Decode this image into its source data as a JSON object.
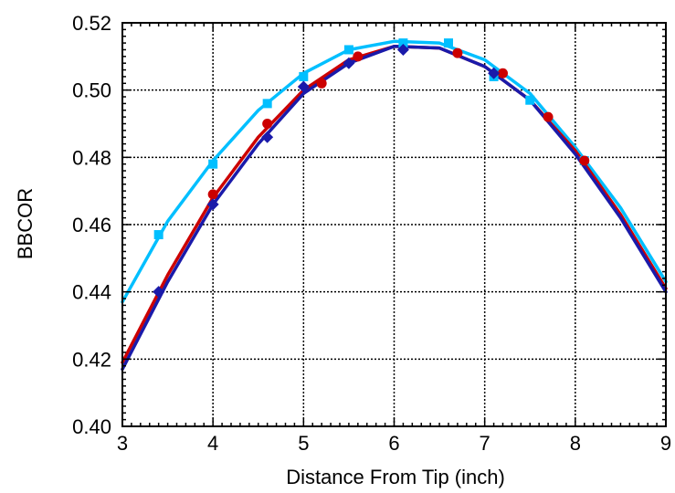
{
  "chart_data": {
    "type": "scatter",
    "title": "",
    "xlabel": "Distance From Tip (inch)",
    "ylabel": "BBCOR",
    "xlim": [
      3,
      9
    ],
    "ylim": [
      0.4,
      0.52
    ],
    "xticks": [
      3,
      4,
      5,
      6,
      7,
      8,
      9
    ],
    "yticks": [
      0.4,
      0.42,
      0.44,
      0.46,
      0.48,
      0.5,
      0.52
    ],
    "xtick_labels": [
      "3",
      "4",
      "5",
      "6",
      "7",
      "8",
      "9"
    ],
    "ytick_labels": [
      "0.40",
      "0.42",
      "0.44",
      "0.46",
      "0.48",
      "0.50",
      "0.52"
    ],
    "grid": true,
    "series": [
      {
        "color": "#00bfff",
        "marker": "square",
        "points": [
          {
            "x": 3.4,
            "y": 0.457
          },
          {
            "x": 4.0,
            "y": 0.478
          },
          {
            "x": 4.6,
            "y": 0.496
          },
          {
            "x": 5.0,
            "y": 0.504
          },
          {
            "x": 5.5,
            "y": 0.512
          },
          {
            "x": 6.1,
            "y": 0.514
          },
          {
            "x": 6.6,
            "y": 0.514
          },
          {
            "x": 7.1,
            "y": 0.504
          },
          {
            "x": 7.5,
            "y": 0.497
          },
          {
            "x": 8.1,
            "y": 0.479
          }
        ],
        "fit": [
          {
            "x": 3.0,
            "y": 0.437
          },
          {
            "x": 3.5,
            "y": 0.461
          },
          {
            "x": 4.0,
            "y": 0.479
          },
          {
            "x": 4.5,
            "y": 0.494
          },
          {
            "x": 5.0,
            "y": 0.505
          },
          {
            "x": 5.5,
            "y": 0.512
          },
          {
            "x": 6.0,
            "y": 0.5145
          },
          {
            "x": 6.5,
            "y": 0.514
          },
          {
            "x": 7.0,
            "y": 0.509
          },
          {
            "x": 7.5,
            "y": 0.499
          },
          {
            "x": 8.0,
            "y": 0.483
          },
          {
            "x": 8.5,
            "y": 0.465
          },
          {
            "x": 9.0,
            "y": 0.443
          }
        ]
      },
      {
        "color": "#cc0000",
        "marker": "circle",
        "points": [
          {
            "x": 4.0,
            "y": 0.469
          },
          {
            "x": 4.6,
            "y": 0.49
          },
          {
            "x": 5.2,
            "y": 0.502
          },
          {
            "x": 5.6,
            "y": 0.51
          },
          {
            "x": 6.7,
            "y": 0.511
          },
          {
            "x": 7.2,
            "y": 0.505
          },
          {
            "x": 7.7,
            "y": 0.492
          },
          {
            "x": 8.1,
            "y": 0.479
          }
        ],
        "fit": [
          {
            "x": 3.0,
            "y": 0.419
          },
          {
            "x": 3.5,
            "y": 0.445
          },
          {
            "x": 4.0,
            "y": 0.468
          },
          {
            "x": 4.5,
            "y": 0.486
          },
          {
            "x": 5.0,
            "y": 0.5
          },
          {
            "x": 5.5,
            "y": 0.509
          },
          {
            "x": 6.0,
            "y": 0.513
          },
          {
            "x": 6.5,
            "y": 0.5125
          },
          {
            "x": 7.0,
            "y": 0.507
          },
          {
            "x": 7.5,
            "y": 0.497
          },
          {
            "x": 8.0,
            "y": 0.482
          },
          {
            "x": 8.5,
            "y": 0.463
          },
          {
            "x": 9.0,
            "y": 0.441
          }
        ]
      },
      {
        "color": "#1a1aaa",
        "marker": "diamond",
        "points": [
          {
            "x": 3.4,
            "y": 0.44
          },
          {
            "x": 4.0,
            "y": 0.466
          },
          {
            "x": 4.6,
            "y": 0.486
          },
          {
            "x": 5.0,
            "y": 0.501
          },
          {
            "x": 5.5,
            "y": 0.508
          },
          {
            "x": 6.1,
            "y": 0.512
          },
          {
            "x": 7.1,
            "y": 0.505
          }
        ],
        "fit": [
          {
            "x": 3.0,
            "y": 0.417
          },
          {
            "x": 3.5,
            "y": 0.443
          },
          {
            "x": 4.0,
            "y": 0.466
          },
          {
            "x": 4.5,
            "y": 0.484
          },
          {
            "x": 5.0,
            "y": 0.499
          },
          {
            "x": 5.5,
            "y": 0.508
          },
          {
            "x": 6.0,
            "y": 0.513
          },
          {
            "x": 6.5,
            "y": 0.5125
          },
          {
            "x": 7.0,
            "y": 0.507
          },
          {
            "x": 7.5,
            "y": 0.497
          },
          {
            "x": 8.0,
            "y": 0.481
          },
          {
            "x": 8.5,
            "y": 0.462
          },
          {
            "x": 9.0,
            "y": 0.44
          }
        ]
      }
    ]
  }
}
